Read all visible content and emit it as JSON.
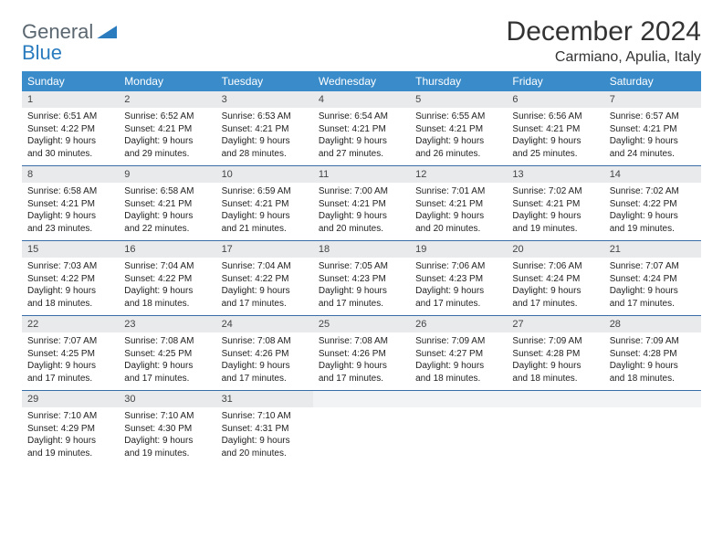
{
  "brand": {
    "part1": "General",
    "part2": "Blue"
  },
  "title": "December 2024",
  "location": "Carmiano, Apulia, Italy",
  "colors": {
    "header_bg": "#3a8bc9",
    "daynum_bg": "#e8eaec",
    "week_border": "#3a6ea8",
    "logo_gray": "#5b6770",
    "logo_blue": "#2b7bbf"
  },
  "weekdays": [
    "Sunday",
    "Monday",
    "Tuesday",
    "Wednesday",
    "Thursday",
    "Friday",
    "Saturday"
  ],
  "weeks": [
    [
      {
        "n": "1",
        "sr": "Sunrise: 6:51 AM",
        "ss": "Sunset: 4:22 PM",
        "d1": "Daylight: 9 hours",
        "d2": "and 30 minutes."
      },
      {
        "n": "2",
        "sr": "Sunrise: 6:52 AM",
        "ss": "Sunset: 4:21 PM",
        "d1": "Daylight: 9 hours",
        "d2": "and 29 minutes."
      },
      {
        "n": "3",
        "sr": "Sunrise: 6:53 AM",
        "ss": "Sunset: 4:21 PM",
        "d1": "Daylight: 9 hours",
        "d2": "and 28 minutes."
      },
      {
        "n": "4",
        "sr": "Sunrise: 6:54 AM",
        "ss": "Sunset: 4:21 PM",
        "d1": "Daylight: 9 hours",
        "d2": "and 27 minutes."
      },
      {
        "n": "5",
        "sr": "Sunrise: 6:55 AM",
        "ss": "Sunset: 4:21 PM",
        "d1": "Daylight: 9 hours",
        "d2": "and 26 minutes."
      },
      {
        "n": "6",
        "sr": "Sunrise: 6:56 AM",
        "ss": "Sunset: 4:21 PM",
        "d1": "Daylight: 9 hours",
        "d2": "and 25 minutes."
      },
      {
        "n": "7",
        "sr": "Sunrise: 6:57 AM",
        "ss": "Sunset: 4:21 PM",
        "d1": "Daylight: 9 hours",
        "d2": "and 24 minutes."
      }
    ],
    [
      {
        "n": "8",
        "sr": "Sunrise: 6:58 AM",
        "ss": "Sunset: 4:21 PM",
        "d1": "Daylight: 9 hours",
        "d2": "and 23 minutes."
      },
      {
        "n": "9",
        "sr": "Sunrise: 6:58 AM",
        "ss": "Sunset: 4:21 PM",
        "d1": "Daylight: 9 hours",
        "d2": "and 22 minutes."
      },
      {
        "n": "10",
        "sr": "Sunrise: 6:59 AM",
        "ss": "Sunset: 4:21 PM",
        "d1": "Daylight: 9 hours",
        "d2": "and 21 minutes."
      },
      {
        "n": "11",
        "sr": "Sunrise: 7:00 AM",
        "ss": "Sunset: 4:21 PM",
        "d1": "Daylight: 9 hours",
        "d2": "and 20 minutes."
      },
      {
        "n": "12",
        "sr": "Sunrise: 7:01 AM",
        "ss": "Sunset: 4:21 PM",
        "d1": "Daylight: 9 hours",
        "d2": "and 20 minutes."
      },
      {
        "n": "13",
        "sr": "Sunrise: 7:02 AM",
        "ss": "Sunset: 4:21 PM",
        "d1": "Daylight: 9 hours",
        "d2": "and 19 minutes."
      },
      {
        "n": "14",
        "sr": "Sunrise: 7:02 AM",
        "ss": "Sunset: 4:22 PM",
        "d1": "Daylight: 9 hours",
        "d2": "and 19 minutes."
      }
    ],
    [
      {
        "n": "15",
        "sr": "Sunrise: 7:03 AM",
        "ss": "Sunset: 4:22 PM",
        "d1": "Daylight: 9 hours",
        "d2": "and 18 minutes."
      },
      {
        "n": "16",
        "sr": "Sunrise: 7:04 AM",
        "ss": "Sunset: 4:22 PM",
        "d1": "Daylight: 9 hours",
        "d2": "and 18 minutes."
      },
      {
        "n": "17",
        "sr": "Sunrise: 7:04 AM",
        "ss": "Sunset: 4:22 PM",
        "d1": "Daylight: 9 hours",
        "d2": "and 17 minutes."
      },
      {
        "n": "18",
        "sr": "Sunrise: 7:05 AM",
        "ss": "Sunset: 4:23 PM",
        "d1": "Daylight: 9 hours",
        "d2": "and 17 minutes."
      },
      {
        "n": "19",
        "sr": "Sunrise: 7:06 AM",
        "ss": "Sunset: 4:23 PM",
        "d1": "Daylight: 9 hours",
        "d2": "and 17 minutes."
      },
      {
        "n": "20",
        "sr": "Sunrise: 7:06 AM",
        "ss": "Sunset: 4:24 PM",
        "d1": "Daylight: 9 hours",
        "d2": "and 17 minutes."
      },
      {
        "n": "21",
        "sr": "Sunrise: 7:07 AM",
        "ss": "Sunset: 4:24 PM",
        "d1": "Daylight: 9 hours",
        "d2": "and 17 minutes."
      }
    ],
    [
      {
        "n": "22",
        "sr": "Sunrise: 7:07 AM",
        "ss": "Sunset: 4:25 PM",
        "d1": "Daylight: 9 hours",
        "d2": "and 17 minutes."
      },
      {
        "n": "23",
        "sr": "Sunrise: 7:08 AM",
        "ss": "Sunset: 4:25 PM",
        "d1": "Daylight: 9 hours",
        "d2": "and 17 minutes."
      },
      {
        "n": "24",
        "sr": "Sunrise: 7:08 AM",
        "ss": "Sunset: 4:26 PM",
        "d1": "Daylight: 9 hours",
        "d2": "and 17 minutes."
      },
      {
        "n": "25",
        "sr": "Sunrise: 7:08 AM",
        "ss": "Sunset: 4:26 PM",
        "d1": "Daylight: 9 hours",
        "d2": "and 17 minutes."
      },
      {
        "n": "26",
        "sr": "Sunrise: 7:09 AM",
        "ss": "Sunset: 4:27 PM",
        "d1": "Daylight: 9 hours",
        "d2": "and 18 minutes."
      },
      {
        "n": "27",
        "sr": "Sunrise: 7:09 AM",
        "ss": "Sunset: 4:28 PM",
        "d1": "Daylight: 9 hours",
        "d2": "and 18 minutes."
      },
      {
        "n": "28",
        "sr": "Sunrise: 7:09 AM",
        "ss": "Sunset: 4:28 PM",
        "d1": "Daylight: 9 hours",
        "d2": "and 18 minutes."
      }
    ],
    [
      {
        "n": "29",
        "sr": "Sunrise: 7:10 AM",
        "ss": "Sunset: 4:29 PM",
        "d1": "Daylight: 9 hours",
        "d2": "and 19 minutes."
      },
      {
        "n": "30",
        "sr": "Sunrise: 7:10 AM",
        "ss": "Sunset: 4:30 PM",
        "d1": "Daylight: 9 hours",
        "d2": "and 19 minutes."
      },
      {
        "n": "31",
        "sr": "Sunrise: 7:10 AM",
        "ss": "Sunset: 4:31 PM",
        "d1": "Daylight: 9 hours",
        "d2": "and 20 minutes."
      },
      {
        "empty": true
      },
      {
        "empty": true
      },
      {
        "empty": true
      },
      {
        "empty": true
      }
    ]
  ]
}
